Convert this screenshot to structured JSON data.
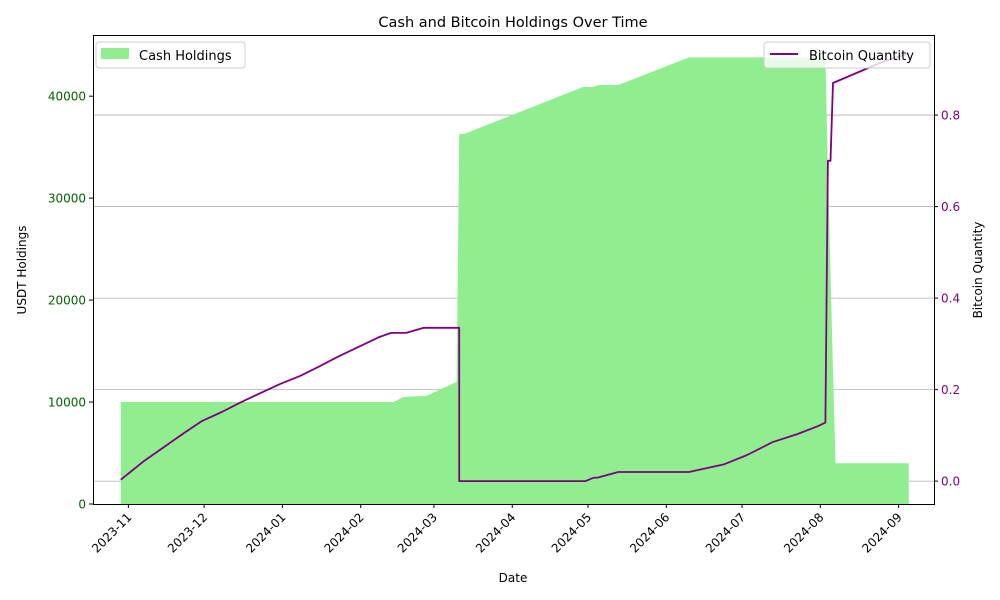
{
  "chart_data": {
    "type": "area+line",
    "title": "Cash and Bitcoin Holdings Over Time",
    "xlabel": "Date",
    "ylabel_left": "USDT Holdings",
    "ylabel_right": "Bitcoin Quantity",
    "x_ticks": [
      "2023-11",
      "2023-12",
      "2024-01",
      "2024-02",
      "2024-03",
      "2024-04",
      "2024-05",
      "2024-06",
      "2024-07",
      "2024-08",
      "2024-09"
    ],
    "y_left_ticks": [
      0,
      10000,
      20000,
      30000,
      40000
    ],
    "y_right_ticks": [
      "0.0",
      "0.2",
      "0.4",
      "0.6",
      "0.8"
    ],
    "ylim_left": [
      0,
      46000
    ],
    "ylim_right": [
      -0.05,
      0.975
    ],
    "grid": "horizontal lines at right-axis ticks",
    "colors": {
      "cash": "#90ee90",
      "bitcoin": "#800080",
      "left_ticks": "#006400",
      "right_ticks": "#800080"
    },
    "series": [
      {
        "name": "Cash Holdings",
        "axis": "left",
        "style": "area",
        "points": [
          [
            "2023-10-29",
            10000
          ],
          [
            "2024-02-14",
            10000
          ],
          [
            "2024-02-18",
            10500
          ],
          [
            "2024-02-27",
            10600
          ],
          [
            "2024-03-10",
            12000
          ],
          [
            "2024-03-11",
            36300
          ],
          [
            "2024-03-13",
            36300
          ],
          [
            "2024-04-29",
            40900
          ],
          [
            "2024-05-03",
            40900
          ],
          [
            "2024-05-05",
            41100
          ],
          [
            "2024-05-13",
            41100
          ],
          [
            "2024-06-10",
            43800
          ],
          [
            "2024-08-03",
            43800
          ],
          [
            "2024-08-04",
            33000
          ],
          [
            "2024-08-06",
            13000
          ],
          [
            "2024-08-07",
            4000
          ],
          [
            "2024-09-05",
            4000
          ]
        ]
      },
      {
        "name": "Bitcoin Quantity",
        "axis": "right",
        "style": "line",
        "points": [
          [
            "2023-10-29",
            0.003
          ],
          [
            "2023-11-07",
            0.043
          ],
          [
            "2023-11-15",
            0.074
          ],
          [
            "2023-11-23",
            0.105
          ],
          [
            "2023-11-30",
            0.131
          ],
          [
            "2023-12-08",
            0.151
          ],
          [
            "2023-12-15",
            0.171
          ],
          [
            "2023-12-22",
            0.189
          ],
          [
            "2023-12-31",
            0.212
          ],
          [
            "2024-01-08",
            0.23
          ],
          [
            "2024-01-15",
            0.249
          ],
          [
            "2024-01-23",
            0.272
          ],
          [
            "2024-01-31",
            0.293
          ],
          [
            "2024-02-08",
            0.314
          ],
          [
            "2024-02-13",
            0.324
          ],
          [
            "2024-02-19",
            0.324
          ],
          [
            "2024-02-26",
            0.335
          ],
          [
            "2024-03-11",
            0.335
          ],
          [
            "2024-03-11",
            0.0
          ],
          [
            "2024-04-30",
            0.0
          ],
          [
            "2024-05-03",
            0.007
          ],
          [
            "2024-05-05",
            0.008
          ],
          [
            "2024-05-13",
            0.02
          ],
          [
            "2024-06-10",
            0.02
          ],
          [
            "2024-06-24",
            0.037
          ],
          [
            "2024-07-03",
            0.057
          ],
          [
            "2024-07-13",
            0.085
          ],
          [
            "2024-07-23",
            0.103
          ],
          [
            "2024-07-31",
            0.12
          ],
          [
            "2024-08-03",
            0.128
          ],
          [
            "2024-08-04",
            0.7
          ],
          [
            "2024-08-05",
            0.7
          ],
          [
            "2024-08-06",
            0.87
          ],
          [
            "2024-08-25",
            0.915
          ],
          [
            "2024-09-05",
            0.935
          ]
        ]
      }
    ],
    "legend": [
      {
        "label": "Cash Holdings",
        "placement": "top-left"
      },
      {
        "label": "Bitcoin Quantity",
        "placement": "top-right"
      }
    ]
  }
}
